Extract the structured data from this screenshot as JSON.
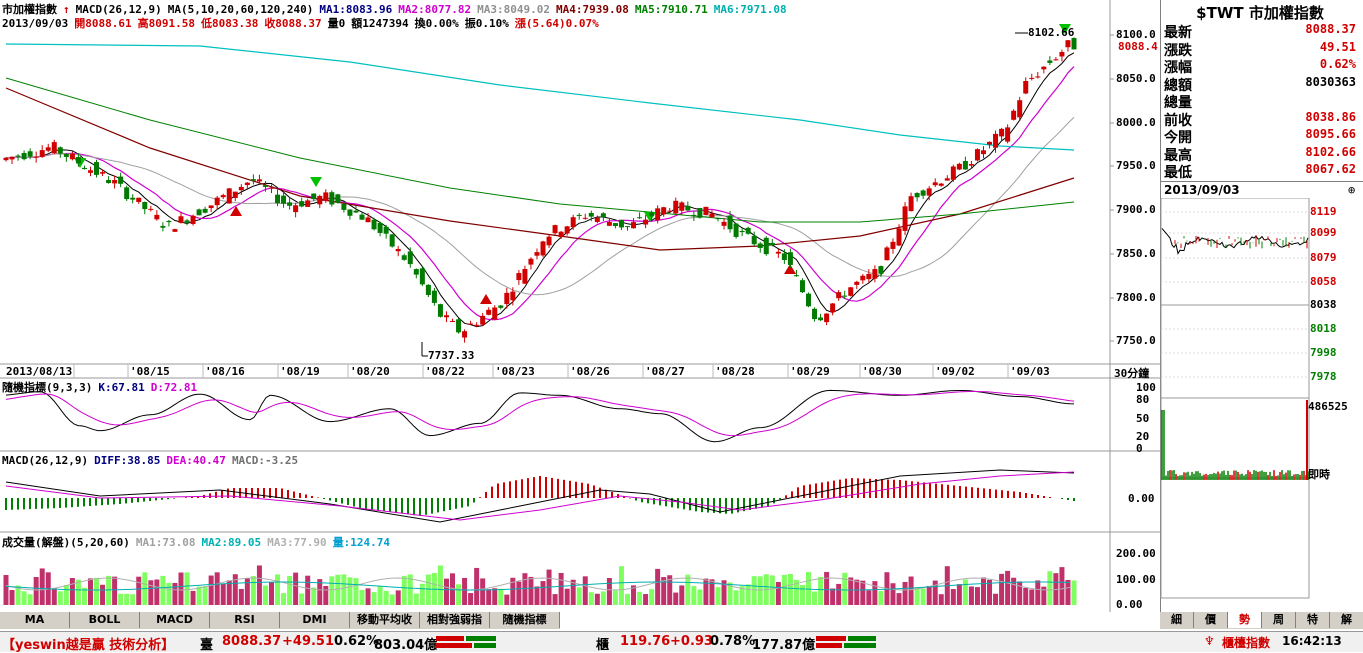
{
  "header": {
    "title": "市加權指數",
    "date": "2013/09/03",
    "macd_params": "MACD(26,12,9)",
    "ma_params": "MA(5,10,20,60,120,240)",
    "ma1": "MA1:8083.96",
    "ma2": "MA2:8077.82",
    "ma3": "MA3:8049.02",
    "ma4": "MA4:7939.08",
    "ma5": "MA5:7910.71",
    "ma6": "MA6:7971.08",
    "open": "開8088.61",
    "high": "高8091.58",
    "low": "低8083.38",
    "close": "收8088.37",
    "vol": "量0",
    "amount": "額1247394",
    "turnover": "換0.00%",
    "swing": "振0.10%",
    "change": "漲(5.64)0.07%"
  },
  "main_axis": {
    "ticks": [
      "8100.0",
      "8050.0",
      "8000.0",
      "7950.0",
      "7900.0",
      "7850.0",
      "7800.0",
      "7750.0"
    ],
    "current_label": "8088.4",
    "high_label": "8102.66",
    "low_label": "7737.33",
    "dates": [
      "2013/08/13",
      "'08/15",
      "'08/16",
      "'08/19",
      "'08/20",
      "'08/22",
      "'08/23",
      "'08/26",
      "'08/27",
      "'08/28",
      "'08/29",
      "'08/30",
      "'09/02",
      "'09/03"
    ],
    "period": "30分鐘"
  },
  "kd": {
    "title": "隨機指標(9,3,3)",
    "k": "K:67.81",
    "d": "D:72.81",
    "ticks": [
      "100",
      "80",
      "50",
      "20",
      "0"
    ]
  },
  "macd": {
    "title": "MACD(26,12,9)",
    "diff": "DIFF:38.85",
    "dea": "DEA:40.47",
    "macd": "MACD:-3.25",
    "tick": "0.00"
  },
  "volume": {
    "title": "成交量(解盤)(5,20,60)",
    "ma1": "MA1:73.08",
    "ma2": "MA2:89.05",
    "ma3": "MA3:77.90",
    "vol": "量:124.74",
    "ticks": [
      "200.00",
      "100.00",
      "0.00"
    ]
  },
  "bottom_tabs": [
    "MA",
    "BOLL",
    "MACD",
    "RSI",
    "DMI",
    "移動平均收",
    "相對強弱指",
    "隨機指標"
  ],
  "quote": {
    "title": "$TWT 市加權指數",
    "rows": [
      {
        "label": "最新",
        "value": "8088.37"
      },
      {
        "label": "漲跌",
        "value": "49.51"
      },
      {
        "label": "漲幅",
        "value": "0.62%"
      },
      {
        "label": "總額",
        "value": "8030363"
      },
      {
        "label": "總量",
        "value": ""
      },
      {
        "label": "前收",
        "value": "8038.86"
      },
      {
        "label": "今開",
        "value": "8095.66"
      },
      {
        "label": "最高",
        "value": "8102.66"
      },
      {
        "label": "最低",
        "value": "8067.62"
      }
    ],
    "mini_date": "2013/09/03",
    "mini_ticks": [
      "8119",
      "8099",
      "8079",
      "8058",
      "8038",
      "8018",
      "7998",
      "7978"
    ],
    "mini_vol": "486525",
    "mini_label": "即時",
    "tabs": [
      "細",
      "價",
      "勢",
      "周",
      "特",
      "解"
    ]
  },
  "status": {
    "brand": "【yeswin越是贏 技術分析】",
    "idx1_name": "臺",
    "idx1_val": "8088.37",
    "idx1_chg": "+49.51",
    "idx1_pct": "0.62%",
    "idx1_amt": "803.04億",
    "idx2_name": "櫃",
    "idx2_val": "119.76",
    "idx2_chg": "+0.93",
    "idx2_pct": "0.78%",
    "idx2_amt": "177.87億",
    "tool": "櫃檯指數",
    "time": "16:42:13"
  },
  "colors": {
    "up": "#d00000",
    "down": "#007a00",
    "ma1": "#000000",
    "ma2": "#d000d0",
    "ma3": "#a0a0a0",
    "ma4": "#800000",
    "ma5": "#008000",
    "ma6": "#00c0c0"
  }
}
